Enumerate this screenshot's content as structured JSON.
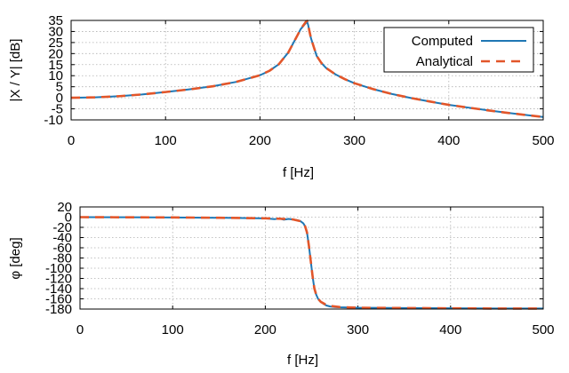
{
  "chart_data": [
    {
      "type": "line",
      "xlabel": "f [Hz]",
      "ylabel": "|X / Y| [dB]",
      "xlim": [
        0,
        500
      ],
      "ylim": [
        -10,
        35
      ],
      "xticks": [
        0,
        100,
        200,
        300,
        400,
        500
      ],
      "yticks": [
        -10,
        -5,
        0,
        5,
        10,
        15,
        20,
        25,
        30,
        35
      ],
      "grid": true,
      "legend_placement": "top-right",
      "series": [
        {
          "name": "Computed",
          "color": "#1f77b4",
          "style": "solid",
          "x": [
            0,
            25,
            50,
            75,
            100,
            125,
            150,
            175,
            200,
            210,
            220,
            230,
            235,
            240,
            243,
            246,
            248,
            249,
            250,
            251,
            252,
            254,
            257,
            260,
            265,
            270,
            280,
            290,
            300,
            320,
            340,
            360,
            380,
            400,
            420,
            440,
            460,
            480,
            500
          ],
          "y": [
            0,
            0.2,
            0.7,
            1.5,
            2.6,
            3.8,
            5.2,
            7.2,
            10.2,
            12.2,
            15.2,
            20.5,
            24.5,
            28.5,
            31,
            32.5,
            33.5,
            34,
            34.3,
            33,
            31,
            27,
            23,
            19,
            15.8,
            13.5,
            10.6,
            8.4,
            6.6,
            3.9,
            1.7,
            -0.1,
            -1.7,
            -3.2,
            -4.4,
            -5.6,
            -6.7,
            -7.7,
            -8.7
          ]
        },
        {
          "name": "Analytical",
          "color": "#e2562a",
          "style": "dashed",
          "x": [
            0,
            25,
            50,
            75,
            100,
            125,
            150,
            175,
            200,
            210,
            220,
            230,
            235,
            240,
            243,
            246,
            248,
            249,
            250,
            251,
            252,
            254,
            257,
            260,
            265,
            270,
            280,
            290,
            300,
            320,
            340,
            360,
            380,
            400,
            420,
            440,
            460,
            480,
            500
          ],
          "y": [
            0,
            0.2,
            0.7,
            1.5,
            2.6,
            3.8,
            5.2,
            7.2,
            10.2,
            12.2,
            15.2,
            20.5,
            24.5,
            28.5,
            31,
            32.8,
            34,
            34.6,
            34.8,
            33.2,
            31,
            27,
            23,
            19,
            15.8,
            13.5,
            10.6,
            8.4,
            6.6,
            3.9,
            1.7,
            -0.1,
            -1.7,
            -3.2,
            -4.4,
            -5.6,
            -6.7,
            -7.7,
            -8.7
          ]
        }
      ]
    },
    {
      "type": "line",
      "xlabel": "f [Hz]",
      "ylabel": "φ [deg]",
      "xlim": [
        0,
        500
      ],
      "ylim": [
        -180,
        20
      ],
      "xticks": [
        0,
        100,
        200,
        300,
        400,
        500
      ],
      "yticks": [
        -180,
        -160,
        -140,
        -120,
        -100,
        -80,
        -60,
        -40,
        -20,
        0,
        20
      ],
      "grid": true,
      "series": [
        {
          "name": "Computed",
          "color": "#1f77b4",
          "style": "solid",
          "x": [
            0,
            50,
            100,
            150,
            200,
            210,
            215,
            220,
            225,
            230,
            235,
            238,
            241,
            243,
            245,
            247,
            249,
            250,
            251,
            252,
            253,
            255,
            257,
            260,
            263,
            266,
            270,
            275,
            280,
            290,
            300,
            350,
            400,
            450,
            500
          ],
          "y": [
            0,
            -0.3,
            -0.6,
            -1.2,
            -2.3,
            -4,
            -2.5,
            -5,
            -3.5,
            -4.5,
            -6,
            -8,
            -12,
            -18,
            -30,
            -55,
            -85,
            -100,
            -115,
            -128,
            -140,
            -152,
            -160,
            -166,
            -170,
            -173,
            -175,
            -176,
            -176.5,
            -177,
            -177.5,
            -178,
            -178.5,
            -179,
            -179
          ]
        },
        {
          "name": "Analytical",
          "color": "#e2562a",
          "style": "dashed",
          "x": [
            0,
            50,
            100,
            150,
            200,
            220,
            230,
            238,
            243,
            245,
            247,
            249,
            250,
            251,
            252,
            253,
            255,
            257,
            260,
            265,
            270,
            280,
            300,
            350,
            400,
            450,
            500
          ],
          "y": [
            0,
            -0.3,
            -0.6,
            -1.2,
            -2.3,
            -3.5,
            -4.5,
            -8,
            -18,
            -30,
            -55,
            -85,
            -100,
            -115,
            -128,
            -140,
            -152,
            -160,
            -166,
            -171,
            -174,
            -176,
            -177.5,
            -178,
            -178.5,
            -179,
            -179
          ]
        }
      ]
    }
  ]
}
